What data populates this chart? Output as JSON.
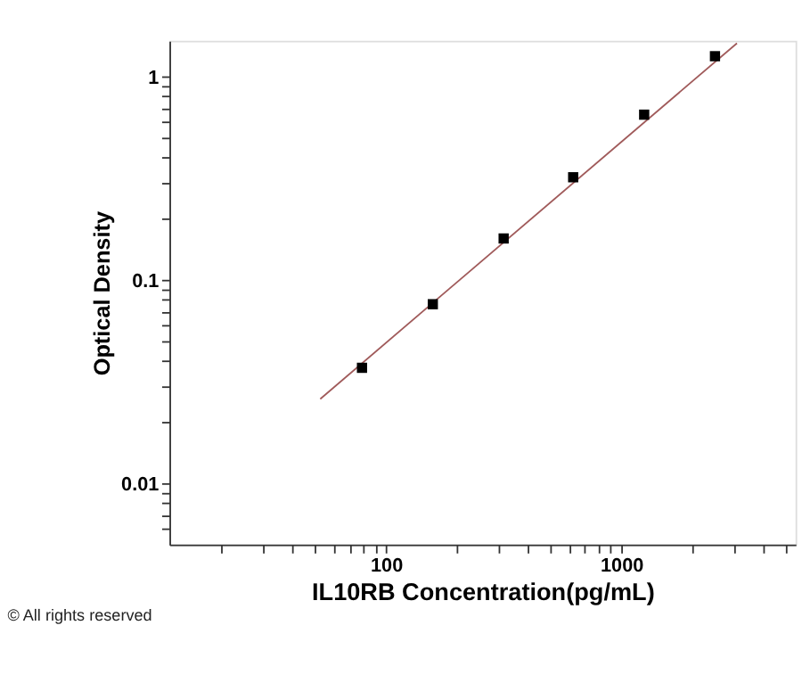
{
  "chart_data": {
    "type": "scatter",
    "xlabel": "IL10RB Concentration(pg/mL)",
    "ylabel": "Optical Density",
    "log": "xy",
    "marker": "square",
    "grid": false,
    "annotations": [
      "© All rights reserved"
    ],
    "xlim": [
      12,
      5500
    ],
    "ylim": [
      0.005,
      1.5
    ],
    "xticks": [
      {
        "value": 20,
        "label": null
      },
      {
        "value": 30,
        "label": null
      },
      {
        "value": 40,
        "label": null
      },
      {
        "value": 50,
        "label": null
      },
      {
        "value": 60,
        "label": null
      },
      {
        "value": 70,
        "label": null
      },
      {
        "value": 80,
        "label": null
      },
      {
        "value": 90,
        "label": null
      },
      100,
      {
        "value": 200,
        "label": null
      },
      {
        "value": 300,
        "label": null
      },
      {
        "value": 400,
        "label": null
      },
      {
        "value": 500,
        "label": null
      },
      {
        "value": 600,
        "label": null
      },
      {
        "value": 700,
        "label": null
      },
      {
        "value": 800,
        "label": null
      },
      {
        "value": 900,
        "label": null
      },
      1000,
      {
        "value": 2000,
        "label": null
      },
      {
        "value": 3000,
        "label": null
      },
      {
        "value": 4000,
        "label": null
      },
      {
        "value": 5000,
        "label": null
      }
    ],
    "yticks": [
      {
        "value": 0.006,
        "label": null
      },
      {
        "value": 0.007,
        "label": null
      },
      {
        "value": 0.008,
        "label": null
      },
      {
        "value": 0.009,
        "label": null
      },
      0.01,
      {
        "value": 0.02,
        "label": null
      },
      {
        "value": 0.03,
        "label": null
      },
      {
        "value": 0.04,
        "label": null
      },
      {
        "value": 0.05,
        "label": null
      },
      {
        "value": 0.06,
        "label": null
      },
      {
        "value": 0.07,
        "label": null
      },
      {
        "value": 0.08,
        "label": null
      },
      {
        "value": 0.09,
        "label": null
      },
      0.1,
      {
        "value": 0.2,
        "label": null
      },
      {
        "value": 0.3,
        "label": null
      },
      {
        "value": 0.4,
        "label": null
      },
      {
        "value": 0.5,
        "label": null
      },
      {
        "value": 0.6,
        "label": null
      },
      {
        "value": 0.7,
        "label": null
      },
      {
        "value": 0.8,
        "label": null
      },
      {
        "value": 0.9,
        "label": null
      },
      1
    ],
    "series": [
      {
        "type": "line",
        "color": "#a05a5a",
        "x": [
          52.5,
          3100
        ],
        "values": [
          0.026,
          1.46
        ],
        "marker": "none",
        "line_style": "solid"
      },
      {
        "color": "#000000",
        "x": [
          79,
          158,
          316,
          624,
          1250,
          2500
        ],
        "values": [
          0.037,
          0.076,
          0.16,
          0.32,
          0.65,
          1.26
        ]
      }
    ]
  }
}
